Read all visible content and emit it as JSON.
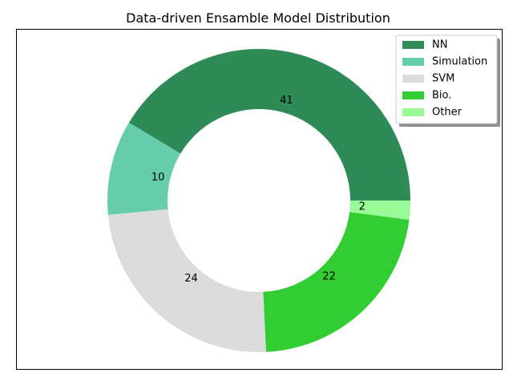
{
  "chart_data": {
    "type": "pie",
    "style": "donut",
    "title": "Data-driven Ensamble Model Distribution",
    "categories": [
      "NN",
      "Simulation",
      "SVM",
      "Bio.",
      "Other"
    ],
    "values": [
      41,
      10,
      24,
      22,
      2
    ],
    "colors": [
      "#2e8b57",
      "#66cdaa",
      "#dcdcdc",
      "#32cd32",
      "#98fb98"
    ],
    "start_angle_deg": 0,
    "direction": "counterclockwise",
    "legend_position": "top-right"
  }
}
